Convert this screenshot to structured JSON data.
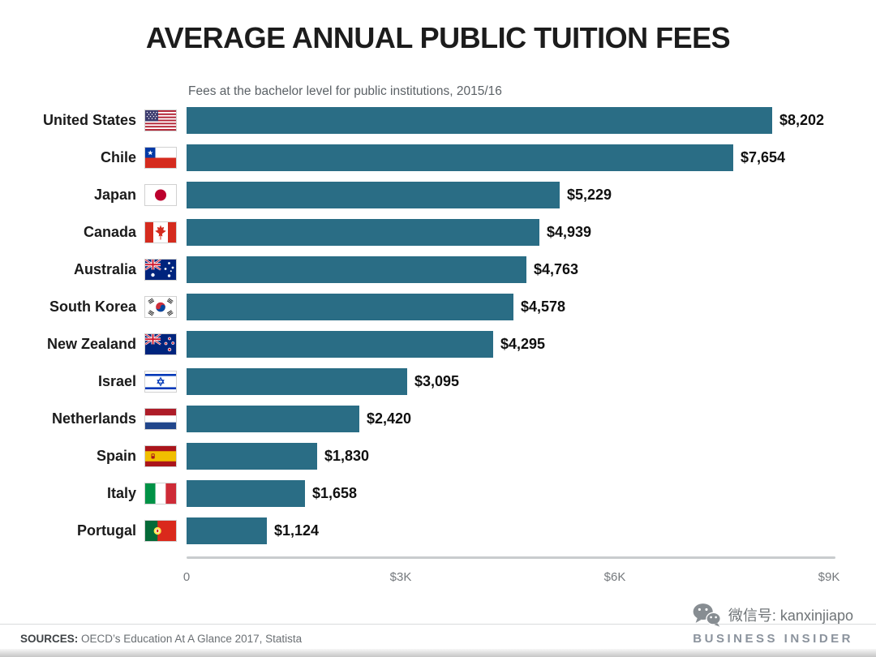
{
  "chart_data": {
    "type": "bar",
    "orientation": "horizontal",
    "title": "AVERAGE ANNUAL PUBLIC TUITION FEES",
    "subtitle": "Fees at the bachelor level for public institutions, 2015/16",
    "categories": [
      "United States",
      "Chile",
      "Japan",
      "Canada",
      "Australia",
      "South Korea",
      "New Zealand",
      "Israel",
      "Netherlands",
      "Spain",
      "Italy",
      "Portugal"
    ],
    "flags": [
      "us",
      "cl",
      "jp",
      "ca",
      "au",
      "kr",
      "nz",
      "il",
      "nl",
      "es",
      "it",
      "pt"
    ],
    "values": [
      8202,
      7654,
      5229,
      4939,
      4763,
      4578,
      4295,
      3095,
      2420,
      1830,
      1658,
      1124
    ],
    "value_labels": [
      "$8,202",
      "$7,654",
      "$5,229",
      "$4,939",
      "$4,763",
      "$4,578",
      "$4,295",
      "$3,095",
      "$2,420",
      "$1,830",
      "$1,658",
      "$1,124"
    ],
    "xlim": [
      0,
      9000
    ],
    "x_ticks": [
      {
        "label": "0",
        "value": 0
      },
      {
        "label": "$3K",
        "value": 3000
      },
      {
        "label": "$6K",
        "value": 6000
      },
      {
        "label": "$9K",
        "value": 9000
      }
    ],
    "grid": false,
    "legend": "none",
    "bar_color": "#2a6d85"
  },
  "footer": {
    "sources_label": "SOURCES:",
    "sources_text": " OECD’s Education At A Glance 2017, Statista",
    "wechat_label": "微信号: kanxinjiapo",
    "brand": "BUSINESS INSIDER"
  }
}
